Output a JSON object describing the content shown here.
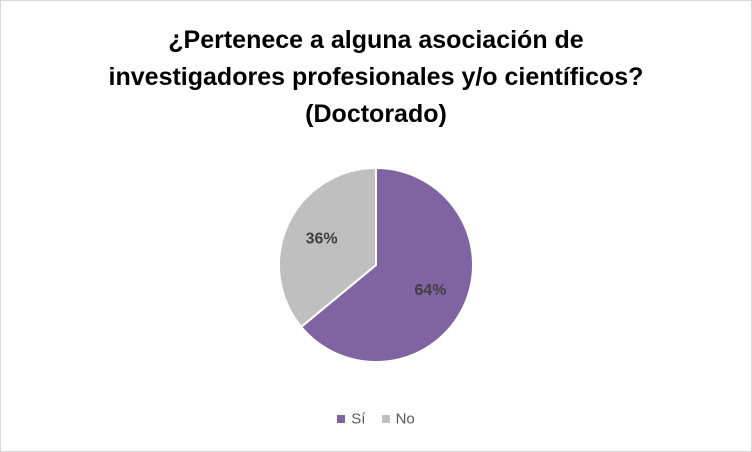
{
  "chart_data": {
    "type": "pie",
    "title_lines": [
      "¿Pertenece a alguna asociación de",
      "investigadores profesionales y/o científicos?",
      "(Doctorado)"
    ],
    "categories": [
      "Sí",
      "No"
    ],
    "values": [
      64,
      36
    ],
    "data_labels": [
      "64%",
      "36%"
    ],
    "colors": [
      "#8064a2",
      "#bfbfbf"
    ],
    "legend_position": "bottom",
    "start_angle_deg": 0,
    "direction": "clockwise"
  }
}
